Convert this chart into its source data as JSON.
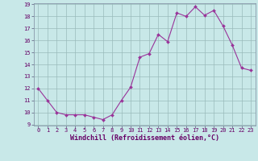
{
  "x": [
    0,
    1,
    2,
    3,
    4,
    5,
    6,
    7,
    8,
    9,
    10,
    11,
    12,
    13,
    14,
    15,
    16,
    17,
    18,
    19,
    20,
    21,
    22,
    23
  ],
  "y": [
    12,
    11,
    10,
    9.8,
    9.8,
    9.8,
    9.6,
    9.4,
    9.8,
    11,
    12.1,
    14.6,
    14.9,
    16.5,
    15.9,
    18.3,
    18,
    18.8,
    18.1,
    18.5,
    17.2,
    15.6,
    13.7,
    13.5
  ],
  "line_color": "#993399",
  "marker_color": "#993399",
  "bg_color": "#c8e8e8",
  "grid_color": "#99bbbb",
  "xlabel": "Windchill (Refroidissement éolien,°C)",
  "ylim": [
    9,
    19
  ],
  "xlim": [
    -0.5,
    23.5
  ],
  "yticks": [
    9,
    10,
    11,
    12,
    13,
    14,
    15,
    16,
    17,
    18,
    19
  ],
  "xticks": [
    0,
    1,
    2,
    3,
    4,
    5,
    6,
    7,
    8,
    9,
    10,
    11,
    12,
    13,
    14,
    15,
    16,
    17,
    18,
    19,
    20,
    21,
    22,
    23
  ],
  "tick_fontsize": 5.0,
  "xlabel_fontsize": 6.0,
  "marker_size": 2.0,
  "line_width": 0.8
}
